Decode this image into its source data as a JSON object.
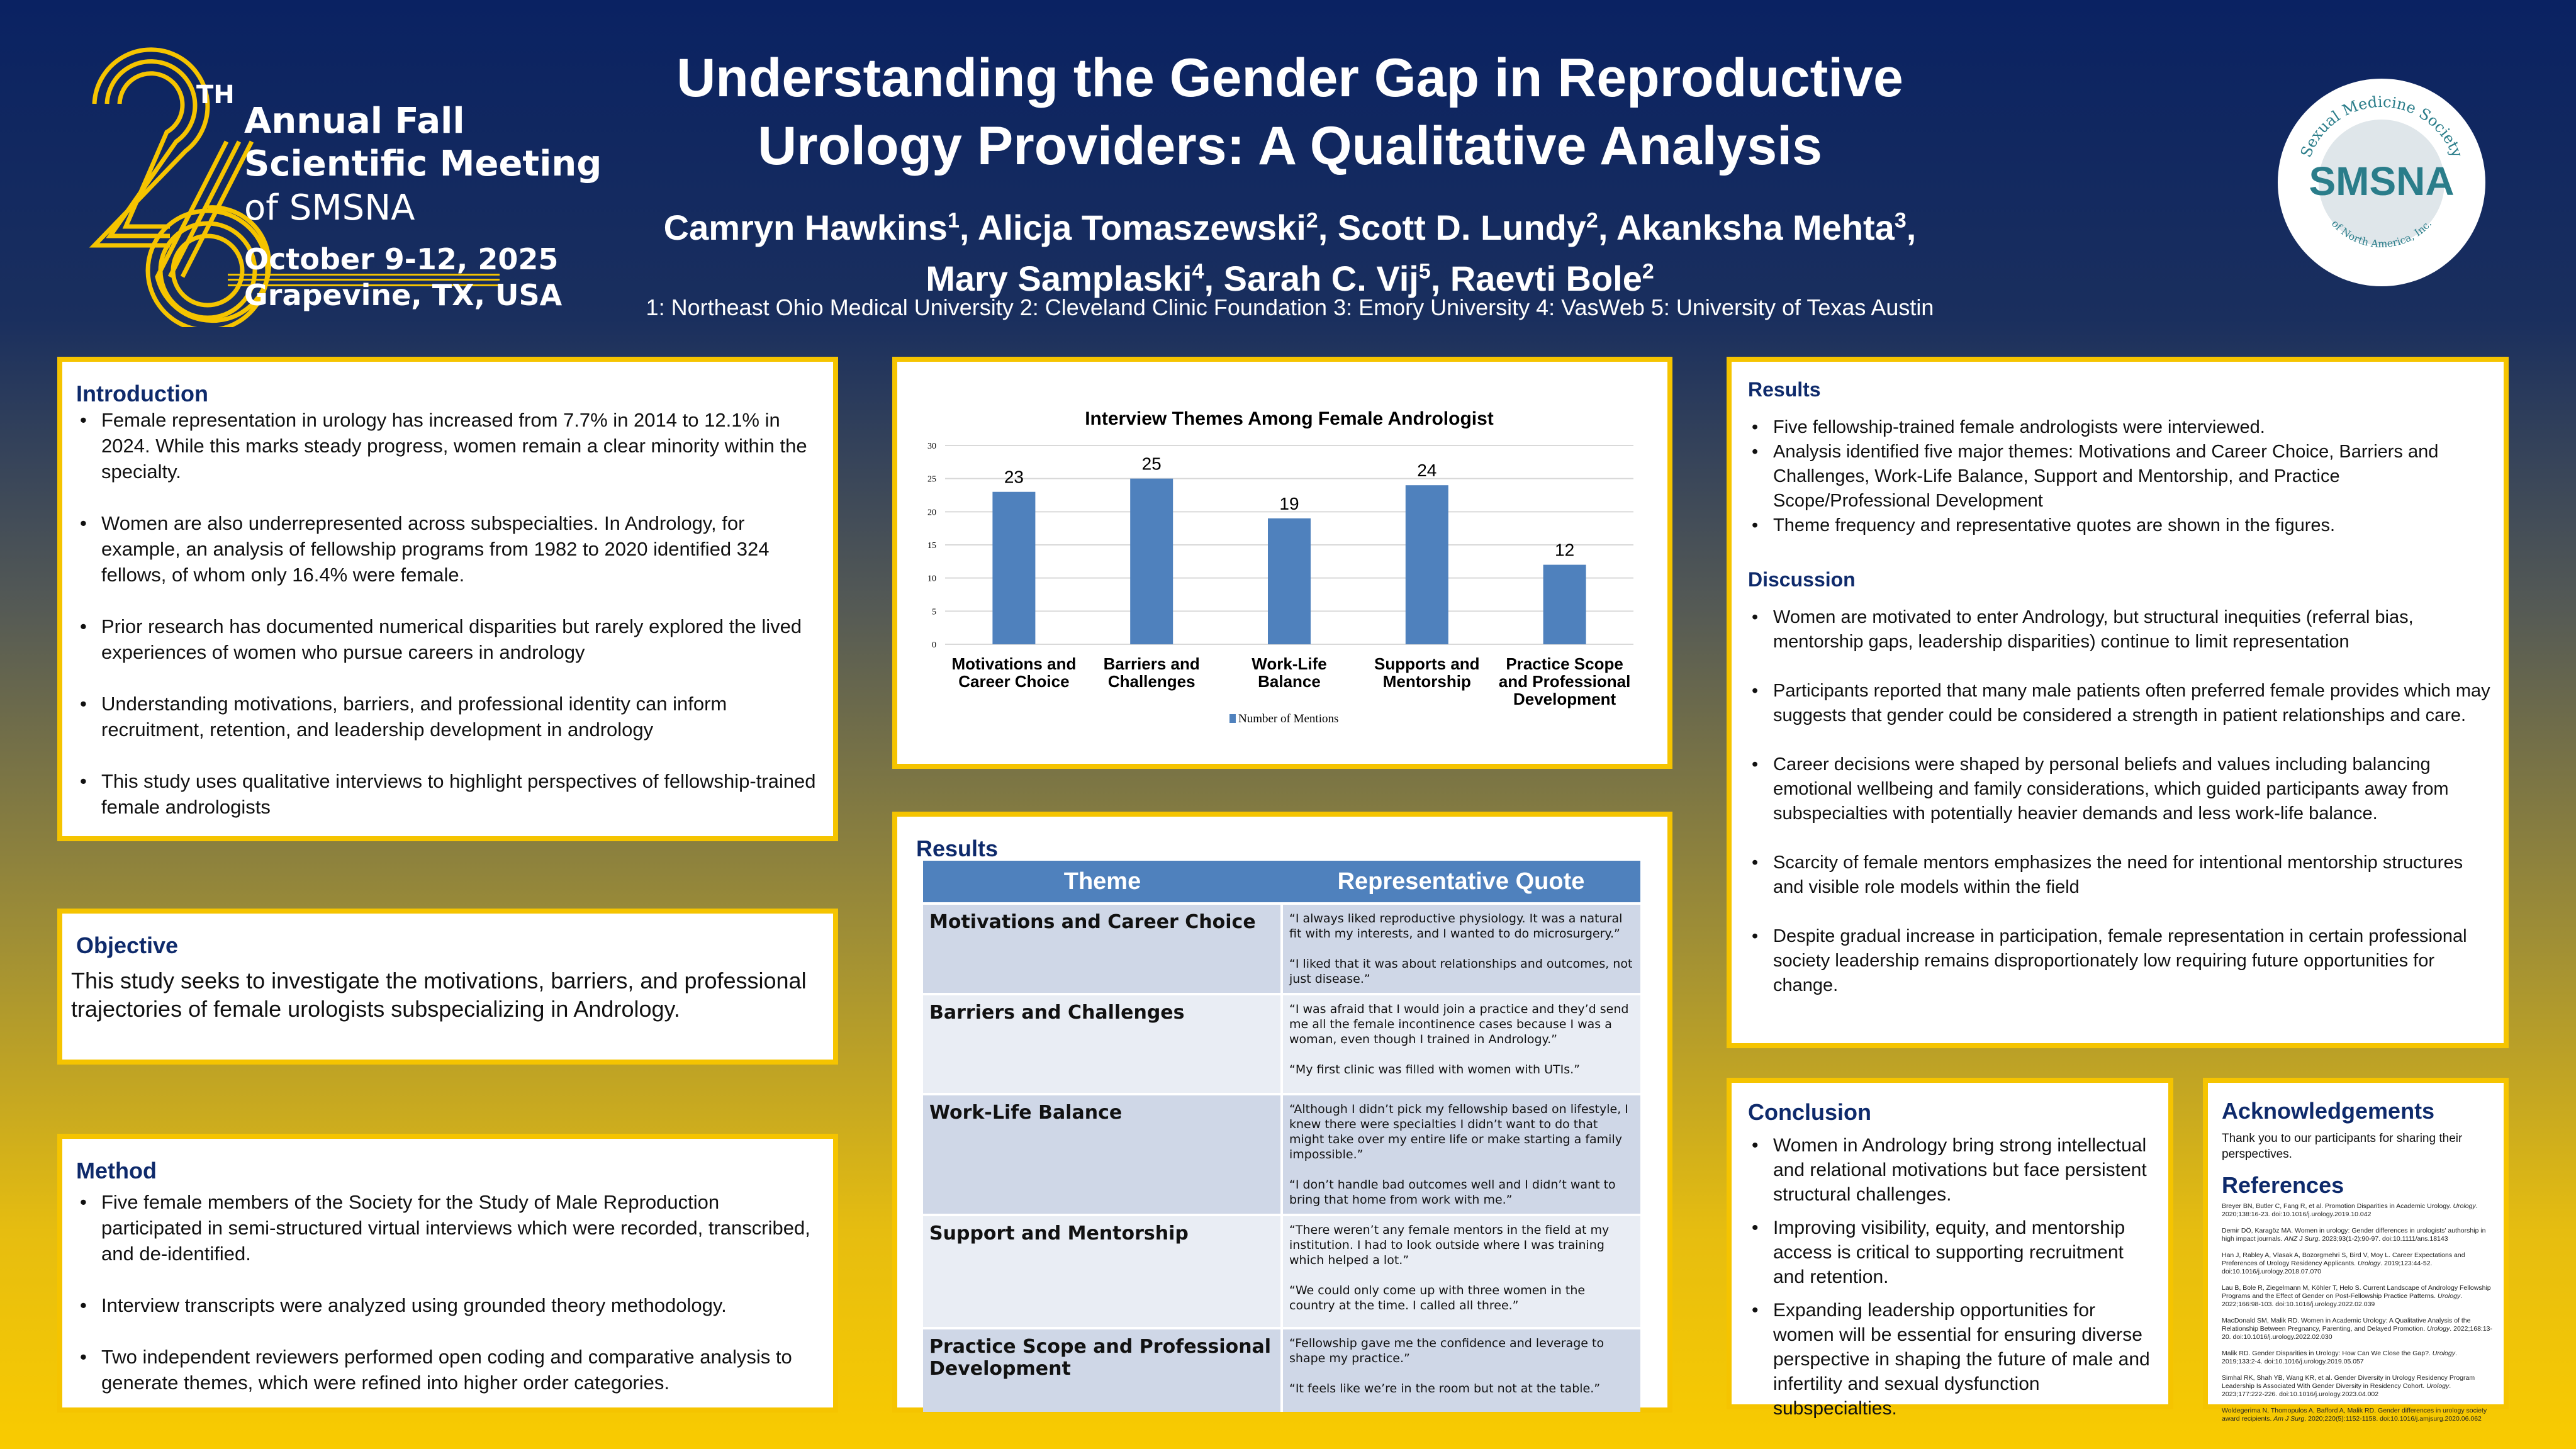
{
  "header": {
    "title_line1": "Understanding the Gender Gap in Reproductive",
    "title_line2": "Urology Providers: A Qualitative Analysis",
    "authors": [
      {
        "name": "Camryn Hawkins",
        "aff": "1"
      },
      {
        "name": "Alicja Tomaszewski",
        "aff": "2"
      },
      {
        "name": "Scott D. Lundy",
        "aff": "2"
      },
      {
        "name": "Akanksha Mehta",
        "aff": "3"
      },
      {
        "name": "Mary Samplaski",
        "aff": "4"
      },
      {
        "name": "Sarah C. Vij",
        "aff": "5"
      },
      {
        "name": "Raevti Bole",
        "aff": "2"
      }
    ],
    "affiliations": "1: Northeast Ohio Medical University 2: Cleveland Clinic Foundation 3: Emory University 4: VasWeb 5: University of Texas Austin"
  },
  "meeting_logo": {
    "number": "26",
    "suffix": "TH",
    "line1": "Annual Fall",
    "line2": "Scientific Meeting",
    "line3": "of SMSNA",
    "date": "October 9-12, 2025",
    "location": "Grapevine, TX, USA",
    "color": "#f5c400"
  },
  "society_logo": {
    "abbr": "SMSNA",
    "arc_top": "Sexual Medicine Society",
    "arc_bottom": "of North America, Inc.",
    "color": "#2a7d8a"
  },
  "introduction": {
    "heading": "Introduction",
    "bullets": [
      "Female representation in urology has increased from 7.7% in 2014 to 12.1% in 2024. While this marks steady progress, women remain a clear minority within the specialty.",
      "Women are also underrepresented across subspecialties. In Andrology, for example, an analysis of fellowship programs from 1982 to 2020 identified 324 fellows, of whom only 16.4% were female.",
      "Prior research has documented numerical disparities but rarely explored the lived experiences of women who pursue careers in andrology",
      "Understanding motivations, barriers, and professional identity can inform recruitment, retention, and leadership development in andrology",
      "This study uses qualitative interviews to highlight perspectives of fellowship-trained female andrologists"
    ]
  },
  "objective": {
    "heading": "Objective",
    "text": "This study seeks to investigate the motivations, barriers, and professional trajectories of female urologists subspecializing in Andrology."
  },
  "method": {
    "heading": "Method",
    "bullets": [
      "Five female members of the Society for the Study of Male Reproduction participated in semi-structured virtual interviews which were recorded, transcribed, and de-identified.",
      "Interview transcripts were analyzed using grounded theory methodology.",
      "Two independent reviewers performed open coding and comparative analysis to generate themes, which were refined into higher order categories."
    ]
  },
  "chart_data": {
    "type": "bar",
    "title": "Interview Themes Among Female Andrologist",
    "categories": [
      [
        "Motivations and",
        "Career Choice"
      ],
      [
        "Barriers and",
        "Challenges"
      ],
      [
        "Work-Life",
        "Balance"
      ],
      [
        "Supports and",
        "Mentorship"
      ],
      [
        "Practice Scope",
        "and Professional",
        "Development"
      ]
    ],
    "series": [
      {
        "name": "Number of Mentions",
        "values": [
          23,
          25,
          19,
          24,
          12
        ],
        "color": "#4f81bd"
      }
    ],
    "ylim": [
      0,
      30
    ],
    "yticks": [
      0,
      5,
      10,
      15,
      20,
      25,
      30
    ],
    "grid": true,
    "legend": "bottom",
    "data_labels": true
  },
  "results_table": {
    "heading": "Results",
    "col1": "Theme",
    "col2": "Representative Quote",
    "rows": [
      {
        "theme": "Motivations and Career Choice",
        "quotes": [
          "“I always liked reproductive physiology. It was a natural fit with my interests, and I wanted to do microsurgery.”",
          "“I liked that it was about relationships and outcomes, not just disease.”"
        ]
      },
      {
        "theme": "Barriers and Challenges",
        "quotes": [
          "“I was afraid that I would join a practice and they’d send me all the female incontinence cases because I was a woman, even though I trained in Andrology.”",
          "“My first clinic was filled with women with UTIs.”"
        ]
      },
      {
        "theme": "Work-Life Balance",
        "quotes": [
          "“Although I didn’t pick my fellowship based on lifestyle, I knew there were specialties I didn’t want to do that might take over my entire life or make starting a family impossible.”",
          "“I don’t handle bad outcomes well and I didn’t want to bring that home from work with me.”"
        ]
      },
      {
        "theme": "Support and Mentorship",
        "quotes": [
          "“There weren’t any female mentors in the field at my institution. I had to look outside where I was training which helped a lot.”",
          "“We could only come up with three women in the country at the time. I called all three.”"
        ]
      },
      {
        "theme": "Practice Scope and Professional Development",
        "quotes": [
          "“Fellowship gave me the confidence and leverage to shape my practice.”",
          "“It feels like we’re in the room but not at the table.”"
        ]
      }
    ]
  },
  "results": {
    "heading": "Results",
    "bullets": [
      "Five fellowship-trained female andrologists were interviewed.",
      "Analysis identified five major themes: Motivations and Career Choice, Barriers and Challenges, Work-Life Balance, Support and Mentorship, and Practice Scope/Professional Development",
      "Theme frequency and representative quotes are shown in the figures."
    ]
  },
  "discussion": {
    "heading": "Discussion",
    "bullets": [
      "Women are motivated to enter Andrology, but structural inequities (referral bias, mentorship gaps, leadership disparities) continue to limit representation",
      "Participants reported that many male patients often preferred female provides which may suggests that gender could be considered a strength in patient relationships and care.",
      "Career decisions were shaped by personal beliefs and values including balancing emotional wellbeing and family considerations, which guided participants away from subspecialties with potentially heavier demands and less work-life balance.",
      "Scarcity of female mentors emphasizes the need for intentional mentorship structures and visible role models within the field",
      "Despite gradual increase in participation, female representation in certain professional society leadership remains disproportionately low requiring future opportunities for change."
    ]
  },
  "conclusion": {
    "heading": "Conclusion",
    "bullets": [
      "Women in Andrology bring strong intellectual and relational motivations but face persistent structural challenges.",
      "Improving visibility, equity, and mentorship access is critical to supporting recruitment and retention.",
      "Expanding leadership opportunities for women will be essential for ensuring diverse perspective in shaping the future of male and infertility and sexual dysfunction subspecialties."
    ]
  },
  "acknowledgements": {
    "heading": "Acknowledgements",
    "text": "Thank you to our participants for sharing their perspectives."
  },
  "references": {
    "heading": "References",
    "items": [
      {
        "pre": "Breyer BN, Butler C, Fang R, et al. Promotion Disparities in Academic Urology. ",
        "journal": "Urology",
        "post": ". 2020;138:16-23. doi:10.1016/j.urology.2019.10.042"
      },
      {
        "pre": "Demir DÖ, Karagöz MA. Women in urology: Gender differences in urologists' authorship in high impact journals. ",
        "journal": "ANZ J Surg",
        "post": ". 2023;93(1-2):90-97. doi:10.1111/ans.18143"
      },
      {
        "pre": "Han J, Rabley A, Vlasak A, Bozorgmehri S, Bird V, Moy L. Career Expectations and Preferences of Urology Residency Applicants. ",
        "journal": "Urology",
        "post": ". 2019;123:44-52. doi:10.1016/j.urology.2018.07.070"
      },
      {
        "pre": "Lau B, Bole R, Ziegelmann M, Köhler T, Helo S. Current Landscape of Andrology Fellowship Programs and the Effect of Gender on Post-Fellowship Practice Patterns. ",
        "journal": "Urology",
        "post": ". 2022;166:98-103. doi:10.1016/j.urology.2022.02.039"
      },
      {
        "pre": "MacDonald SM, Malik RD. Women in Academic Urology: A Qualitative Analysis of the Relationship Between Pregnancy, Parenting, and Delayed Promotion. ",
        "journal": "Urology",
        "post": ". 2022;168:13-20. doi:10.1016/j.urology.2022.02.030"
      },
      {
        "pre": "Malik RD. Gender Disparities in Urology: How Can We Close the Gap?. ",
        "journal": "Urology",
        "post": ". 2019;133:2-4. doi:10.1016/j.urology.2019.05.057"
      },
      {
        "pre": "Simhal RK, Shah YB, Wang KR, et al. Gender Diversity in Urology Residency Program Leadership Is Associated With Gender Diversity in Residency Cohort. ",
        "journal": "Urology",
        "post": ". 2023;177:222-226. doi:10.1016/j.urology.2023.04.002"
      },
      {
        "pre": "Woldegerima N, Thomopulos A, Bafford A, Malik RD. Gender differences in urology society award recipients. ",
        "journal": "Am J Surg",
        "post": ". 2020;220(5):1152-1158. doi:10.1016/j.amjsurg.2020.06.062"
      }
    ]
  }
}
